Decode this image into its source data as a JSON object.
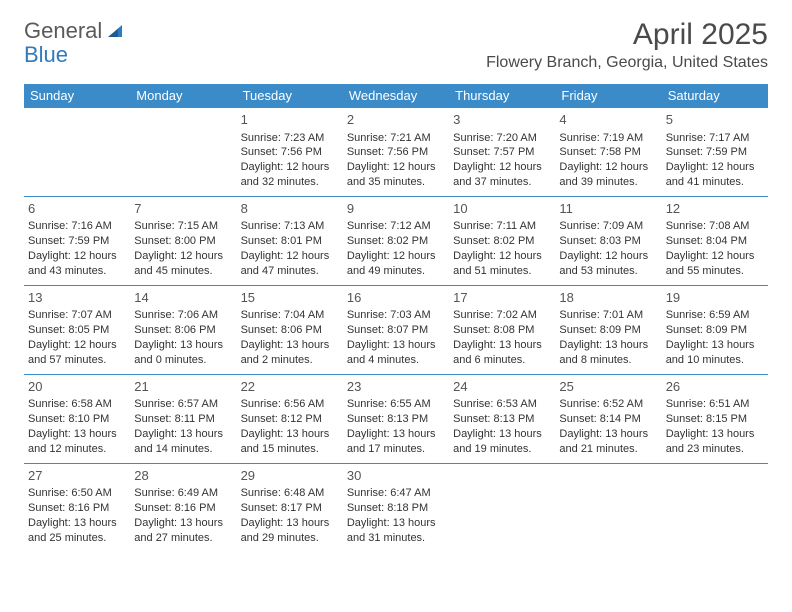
{
  "logo": {
    "part1": "General",
    "part2": "Blue"
  },
  "title": "April 2025",
  "subtitle": "Flowery Branch, Georgia, United States",
  "colors": {
    "header_bg": "#3b8bc9",
    "header_fg": "#ffffff",
    "border": "#3b8bc9",
    "text": "#333333",
    "logo_gray": "#5a5a5a",
    "logo_blue": "#2f7bbf"
  },
  "day_headers": [
    "Sunday",
    "Monday",
    "Tuesday",
    "Wednesday",
    "Thursday",
    "Friday",
    "Saturday"
  ],
  "weeks": [
    [
      null,
      null,
      {
        "n": "1",
        "sunrise": "7:23 AM",
        "sunset": "7:56 PM",
        "dl1": "12 hours",
        "dl2": "and 32 minutes."
      },
      {
        "n": "2",
        "sunrise": "7:21 AM",
        "sunset": "7:56 PM",
        "dl1": "12 hours",
        "dl2": "and 35 minutes."
      },
      {
        "n": "3",
        "sunrise": "7:20 AM",
        "sunset": "7:57 PM",
        "dl1": "12 hours",
        "dl2": "and 37 minutes."
      },
      {
        "n": "4",
        "sunrise": "7:19 AM",
        "sunset": "7:58 PM",
        "dl1": "12 hours",
        "dl2": "and 39 minutes."
      },
      {
        "n": "5",
        "sunrise": "7:17 AM",
        "sunset": "7:59 PM",
        "dl1": "12 hours",
        "dl2": "and 41 minutes."
      }
    ],
    [
      {
        "n": "6",
        "sunrise": "7:16 AM",
        "sunset": "7:59 PM",
        "dl1": "12 hours",
        "dl2": "and 43 minutes."
      },
      {
        "n": "7",
        "sunrise": "7:15 AM",
        "sunset": "8:00 PM",
        "dl1": "12 hours",
        "dl2": "and 45 minutes."
      },
      {
        "n": "8",
        "sunrise": "7:13 AM",
        "sunset": "8:01 PM",
        "dl1": "12 hours",
        "dl2": "and 47 minutes."
      },
      {
        "n": "9",
        "sunrise": "7:12 AM",
        "sunset": "8:02 PM",
        "dl1": "12 hours",
        "dl2": "and 49 minutes."
      },
      {
        "n": "10",
        "sunrise": "7:11 AM",
        "sunset": "8:02 PM",
        "dl1": "12 hours",
        "dl2": "and 51 minutes."
      },
      {
        "n": "11",
        "sunrise": "7:09 AM",
        "sunset": "8:03 PM",
        "dl1": "12 hours",
        "dl2": "and 53 minutes."
      },
      {
        "n": "12",
        "sunrise": "7:08 AM",
        "sunset": "8:04 PM",
        "dl1": "12 hours",
        "dl2": "and 55 minutes."
      }
    ],
    [
      {
        "n": "13",
        "sunrise": "7:07 AM",
        "sunset": "8:05 PM",
        "dl1": "12 hours",
        "dl2": "and 57 minutes."
      },
      {
        "n": "14",
        "sunrise": "7:06 AM",
        "sunset": "8:06 PM",
        "dl1": "13 hours",
        "dl2": "and 0 minutes."
      },
      {
        "n": "15",
        "sunrise": "7:04 AM",
        "sunset": "8:06 PM",
        "dl1": "13 hours",
        "dl2": "and 2 minutes."
      },
      {
        "n": "16",
        "sunrise": "7:03 AM",
        "sunset": "8:07 PM",
        "dl1": "13 hours",
        "dl2": "and 4 minutes."
      },
      {
        "n": "17",
        "sunrise": "7:02 AM",
        "sunset": "8:08 PM",
        "dl1": "13 hours",
        "dl2": "and 6 minutes."
      },
      {
        "n": "18",
        "sunrise": "7:01 AM",
        "sunset": "8:09 PM",
        "dl1": "13 hours",
        "dl2": "and 8 minutes."
      },
      {
        "n": "19",
        "sunrise": "6:59 AM",
        "sunset": "8:09 PM",
        "dl1": "13 hours",
        "dl2": "and 10 minutes."
      }
    ],
    [
      {
        "n": "20",
        "sunrise": "6:58 AM",
        "sunset": "8:10 PM",
        "dl1": "13 hours",
        "dl2": "and 12 minutes."
      },
      {
        "n": "21",
        "sunrise": "6:57 AM",
        "sunset": "8:11 PM",
        "dl1": "13 hours",
        "dl2": "and 14 minutes."
      },
      {
        "n": "22",
        "sunrise": "6:56 AM",
        "sunset": "8:12 PM",
        "dl1": "13 hours",
        "dl2": "and 15 minutes."
      },
      {
        "n": "23",
        "sunrise": "6:55 AM",
        "sunset": "8:13 PM",
        "dl1": "13 hours",
        "dl2": "and 17 minutes."
      },
      {
        "n": "24",
        "sunrise": "6:53 AM",
        "sunset": "8:13 PM",
        "dl1": "13 hours",
        "dl2": "and 19 minutes."
      },
      {
        "n": "25",
        "sunrise": "6:52 AM",
        "sunset": "8:14 PM",
        "dl1": "13 hours",
        "dl2": "and 21 minutes."
      },
      {
        "n": "26",
        "sunrise": "6:51 AM",
        "sunset": "8:15 PM",
        "dl1": "13 hours",
        "dl2": "and 23 minutes."
      }
    ],
    [
      {
        "n": "27",
        "sunrise": "6:50 AM",
        "sunset": "8:16 PM",
        "dl1": "13 hours",
        "dl2": "and 25 minutes."
      },
      {
        "n": "28",
        "sunrise": "6:49 AM",
        "sunset": "8:16 PM",
        "dl1": "13 hours",
        "dl2": "and 27 minutes."
      },
      {
        "n": "29",
        "sunrise": "6:48 AM",
        "sunset": "8:17 PM",
        "dl1": "13 hours",
        "dl2": "and 29 minutes."
      },
      {
        "n": "30",
        "sunrise": "6:47 AM",
        "sunset": "8:18 PM",
        "dl1": "13 hours",
        "dl2": "and 31 minutes."
      },
      null,
      null,
      null
    ]
  ],
  "labels": {
    "sunrise": "Sunrise:",
    "sunset": "Sunset:",
    "daylight": "Daylight:"
  }
}
